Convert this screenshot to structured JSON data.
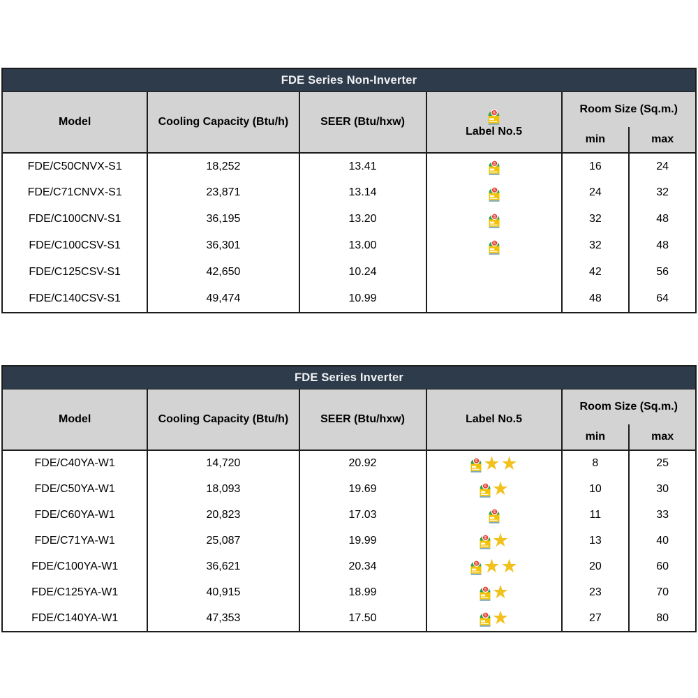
{
  "colors": {
    "title_bar_bg": "#2e3b4a",
    "title_text": "#f1f2f4",
    "header_bg": "#d3d3d3",
    "border": "#1c1c1c",
    "star": "#f2c11e",
    "label_yellow": "#f2c305",
    "label_green": "#2f9e49",
    "label_red": "#e8392e"
  },
  "icons": {
    "energy_label_name": "energy-label-no5-icon",
    "label_digit": "5",
    "star": "★"
  },
  "tables": [
    {
      "title": "FDE Series Non-Inverter",
      "columns": {
        "model": "Model",
        "cooling": "Cooling Capacity (Btu/h)",
        "seer": "SEER (Btu/hxw)",
        "label5": "Label No.5",
        "room": "Room Size (Sq.m.)",
        "min": "min",
        "max": "max"
      },
      "header_has_label_icon": true,
      "rows": [
        {
          "model": "FDE/C50CNVX-S1",
          "cooling": "18,252",
          "seer": "13.41",
          "label5": {
            "badge": true,
            "stars": 0
          },
          "min": "16",
          "max": "24"
        },
        {
          "model": "FDE/C71CNVX-S1",
          "cooling": "23,871",
          "seer": "13.14",
          "label5": {
            "badge": true,
            "stars": 0
          },
          "min": "24",
          "max": "32"
        },
        {
          "model": "FDE/C100CNV-S1",
          "cooling": "36,195",
          "seer": "13.20",
          "label5": {
            "badge": true,
            "stars": 0
          },
          "min": "32",
          "max": "48"
        },
        {
          "model": "FDE/C100CSV-S1",
          "cooling": "36,301",
          "seer": "13.00",
          "label5": {
            "badge": true,
            "stars": 0
          },
          "min": "32",
          "max": "48"
        },
        {
          "model": "FDE/C125CSV-S1",
          "cooling": "42,650",
          "seer": "10.24",
          "label5": {
            "badge": false,
            "stars": 0
          },
          "min": "42",
          "max": "56"
        },
        {
          "model": "FDE/C140CSV-S1",
          "cooling": "49,474",
          "seer": "10.99",
          "label5": {
            "badge": false,
            "stars": 0
          },
          "min": "48",
          "max": "64"
        }
      ]
    },
    {
      "title": "FDE Series Inverter",
      "columns": {
        "model": "Model",
        "cooling": "Cooling Capacity (Btu/h)",
        "seer": "SEER (Btu/hxw)",
        "label5": "Label No.5",
        "room": "Room Size (Sq.m.)",
        "min": "min",
        "max": "max"
      },
      "header_has_label_icon": false,
      "rows": [
        {
          "model": "FDE/C40YA-W1",
          "cooling": "14,720",
          "seer": "20.92",
          "label5": {
            "badge": true,
            "stars": 2
          },
          "min": "8",
          "max": "25"
        },
        {
          "model": "FDE/C50YA-W1",
          "cooling": "18,093",
          "seer": "19.69",
          "label5": {
            "badge": true,
            "stars": 1
          },
          "min": "10",
          "max": "30"
        },
        {
          "model": "FDE/C60YA-W1",
          "cooling": "20,823",
          "seer": "17.03",
          "label5": {
            "badge": true,
            "stars": 0
          },
          "min": "11",
          "max": "33"
        },
        {
          "model": "FDE/C71YA-W1",
          "cooling": "25,087",
          "seer": "19.99",
          "label5": {
            "badge": true,
            "stars": 1
          },
          "min": "13",
          "max": "40"
        },
        {
          "model": "FDE/C100YA-W1",
          "cooling": "36,621",
          "seer": "20.34",
          "label5": {
            "badge": true,
            "stars": 2
          },
          "min": "20",
          "max": "60"
        },
        {
          "model": "FDE/C125YA-W1",
          "cooling": "40,915",
          "seer": "18.99",
          "label5": {
            "badge": true,
            "stars": 1
          },
          "min": "23",
          "max": "70"
        },
        {
          "model": "FDE/C140YA-W1",
          "cooling": "47,353",
          "seer": "17.50",
          "label5": {
            "badge": true,
            "stars": 1
          },
          "min": "27",
          "max": "80"
        }
      ]
    }
  ]
}
